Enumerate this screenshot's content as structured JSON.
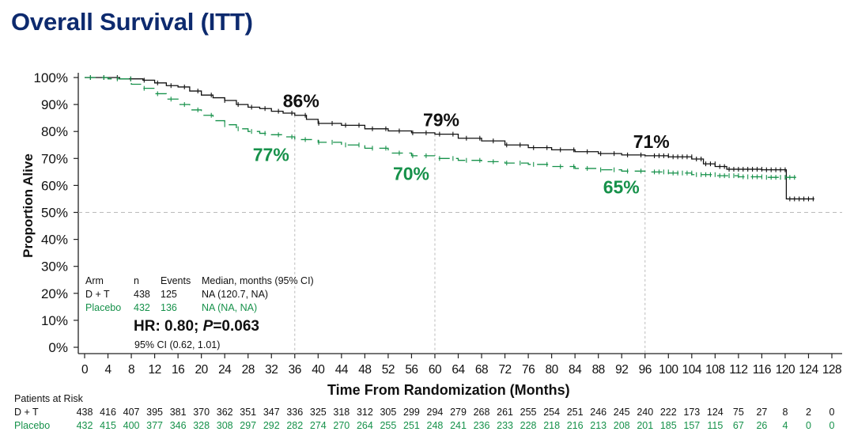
{
  "title": "Overall Survival (ITT)",
  "colors": {
    "title": "#0d2a6e",
    "dt": "#111111",
    "placebo": "#16914a",
    "ref": "#bbbbbb"
  },
  "chart_data": {
    "type": "line",
    "subtype": "kaplan-meier",
    "title": "Overall Survival (ITT)",
    "xlabel": "Time From Randomization (Months)",
    "ylabel": "Proportion Alive",
    "xlim": [
      0,
      128
    ],
    "ylim": [
      0,
      100
    ],
    "x_ticks": [
      0,
      4,
      8,
      12,
      16,
      20,
      24,
      28,
      32,
      36,
      40,
      44,
      48,
      52,
      56,
      60,
      64,
      68,
      72,
      76,
      80,
      84,
      88,
      92,
      96,
      100,
      104,
      108,
      112,
      116,
      120,
      124,
      128
    ],
    "y_ticks": [
      "0%",
      "10%",
      "20%",
      "30%",
      "40%",
      "50%",
      "60%",
      "70%",
      "80%",
      "90%",
      "100%"
    ],
    "reference_line_y": 50,
    "landmarks_x": [
      36,
      60,
      96
    ],
    "series": [
      {
        "name": "D + T",
        "style": "solid",
        "points": [
          [
            0,
            100
          ],
          [
            6,
            99.5
          ],
          [
            10,
            99
          ],
          [
            12,
            98
          ],
          [
            14,
            97
          ],
          [
            16,
            96.5
          ],
          [
            18,
            95
          ],
          [
            20,
            93.5
          ],
          [
            22,
            92.5
          ],
          [
            24,
            91.5
          ],
          [
            26,
            90
          ],
          [
            28,
            89
          ],
          [
            30,
            88.5
          ],
          [
            32,
            87.5
          ],
          [
            34,
            86.8
          ],
          [
            36,
            86
          ],
          [
            38,
            84.5
          ],
          [
            40,
            83
          ],
          [
            44,
            82.3
          ],
          [
            48,
            81
          ],
          [
            52,
            80.2
          ],
          [
            56,
            79.5
          ],
          [
            60,
            79
          ],
          [
            64,
            77.5
          ],
          [
            68,
            76.5
          ],
          [
            72,
            75
          ],
          [
            76,
            74
          ],
          [
            80,
            73.2
          ],
          [
            84,
            72.5
          ],
          [
            88,
            71.8
          ],
          [
            92,
            71.3
          ],
          [
            96,
            71
          ],
          [
            100,
            70.6
          ],
          [
            104,
            69.8
          ],
          [
            106,
            68
          ],
          [
            108,
            67
          ],
          [
            110,
            66
          ],
          [
            116,
            65.8
          ],
          [
            120,
            65.8
          ],
          [
            120.2,
            55
          ],
          [
            125,
            55
          ]
        ],
        "annotations": [
          {
            "x": 36,
            "label": "86%"
          },
          {
            "x": 60,
            "label": "79%"
          },
          {
            "x": 96,
            "label": "71%"
          }
        ]
      },
      {
        "name": "Placebo",
        "style": "dashed",
        "points": [
          [
            0,
            100
          ],
          [
            4,
            99.5
          ],
          [
            8,
            97.5
          ],
          [
            10,
            96
          ],
          [
            12,
            94
          ],
          [
            14,
            92
          ],
          [
            16,
            90
          ],
          [
            18,
            88
          ],
          [
            20,
            86
          ],
          [
            22,
            84
          ],
          [
            24,
            82.5
          ],
          [
            26,
            81
          ],
          [
            28,
            80
          ],
          [
            30,
            79.3
          ],
          [
            32,
            78.8
          ],
          [
            34,
            78
          ],
          [
            36,
            77
          ],
          [
            40,
            76
          ],
          [
            44,
            75
          ],
          [
            48,
            73.8
          ],
          [
            52,
            72
          ],
          [
            56,
            71
          ],
          [
            60,
            70
          ],
          [
            64,
            69.3
          ],
          [
            68,
            68.8
          ],
          [
            72,
            68.3
          ],
          [
            76,
            67.8
          ],
          [
            80,
            67
          ],
          [
            84,
            66.3
          ],
          [
            88,
            65.8
          ],
          [
            92,
            65.3
          ],
          [
            96,
            65
          ],
          [
            100,
            64.6
          ],
          [
            104,
            64
          ],
          [
            108,
            63.6
          ],
          [
            112,
            63.2
          ],
          [
            116,
            63
          ],
          [
            122,
            63
          ]
        ],
        "annotations": [
          {
            "x": 36,
            "label": "77%"
          },
          {
            "x": 60,
            "label": "70%"
          },
          {
            "x": 96,
            "label": "65%"
          }
        ]
      }
    ],
    "summary_table": {
      "headers": [
        "Arm",
        "n",
        "Events",
        "Median, months (95% CI)"
      ],
      "rows": [
        [
          "D + T",
          "438",
          "125",
          "NA (120.7, NA)"
        ],
        [
          "Placebo",
          "432",
          "136",
          "NA (NA, NA)"
        ]
      ]
    },
    "hr_text": "HR: 0.80; ",
    "p_label": "P",
    "p_value": "=0.063",
    "ci_text": "95% CI (0.62, 1.01)",
    "patients_at_risk": {
      "title": "Patients at Risk",
      "times": [
        0,
        4,
        8,
        12,
        16,
        20,
        24,
        28,
        32,
        36,
        40,
        44,
        48,
        52,
        56,
        60,
        64,
        68,
        72,
        76,
        80,
        84,
        88,
        92,
        96,
        100,
        104,
        108,
        112,
        116,
        120,
        124,
        128
      ],
      "rows": [
        {
          "label": "D + T",
          "values": [
            438,
            416,
            407,
            395,
            381,
            370,
            362,
            351,
            347,
            336,
            325,
            318,
            312,
            305,
            299,
            294,
            279,
            268,
            261,
            255,
            254,
            251,
            246,
            245,
            240,
            222,
            173,
            124,
            75,
            27,
            8,
            2,
            0
          ]
        },
        {
          "label": "Placebo",
          "values": [
            432,
            415,
            400,
            377,
            346,
            328,
            308,
            297,
            292,
            282,
            274,
            270,
            264,
            255,
            251,
            248,
            241,
            236,
            233,
            228,
            218,
            216,
            213,
            208,
            201,
            185,
            157,
            115,
            67,
            26,
            4,
            0,
            0
          ]
        }
      ]
    }
  }
}
